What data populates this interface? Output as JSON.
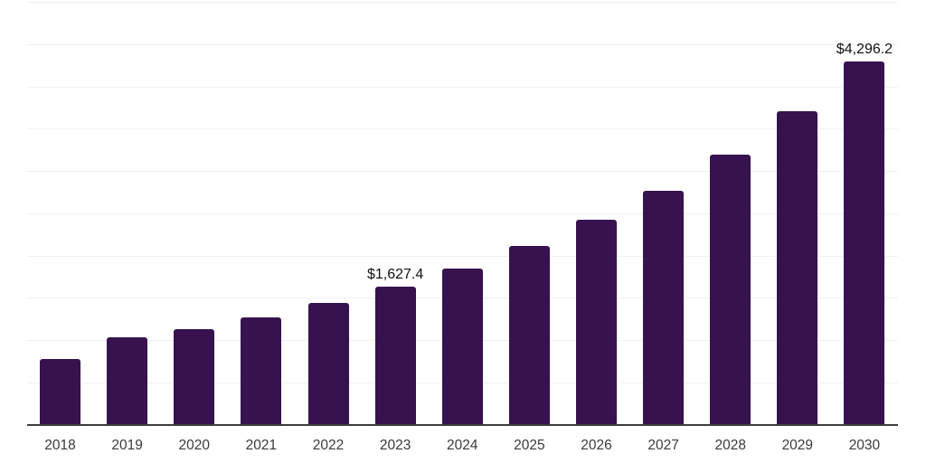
{
  "chart_data": {
    "type": "bar",
    "title": "",
    "xlabel": "",
    "ylabel": "",
    "categories": [
      "2018",
      "2019",
      "2020",
      "2021",
      "2022",
      "2023",
      "2024",
      "2025",
      "2026",
      "2027",
      "2028",
      "2029",
      "2030"
    ],
    "values": [
      775,
      1030,
      1130,
      1270,
      1440,
      1627.4,
      1845,
      2110,
      2420,
      2765,
      3195,
      3710,
      4296.2
    ],
    "data_labels": [
      {
        "category": "2023",
        "text": "$1,627.4"
      },
      {
        "category": "2030",
        "text": "$4,296.2"
      }
    ],
    "ylim": [
      0,
      5000
    ],
    "gridline_interval": 500,
    "grid": true,
    "legend": false,
    "y_axis_tick_labels_visible": false,
    "colors": {
      "bar": "#36124e",
      "gridline": "#f1f1f1",
      "axis_line": "#3d3d3d",
      "value_label": "#111111",
      "tick_label": "#3a3a3a",
      "background": "#ffffff"
    }
  }
}
